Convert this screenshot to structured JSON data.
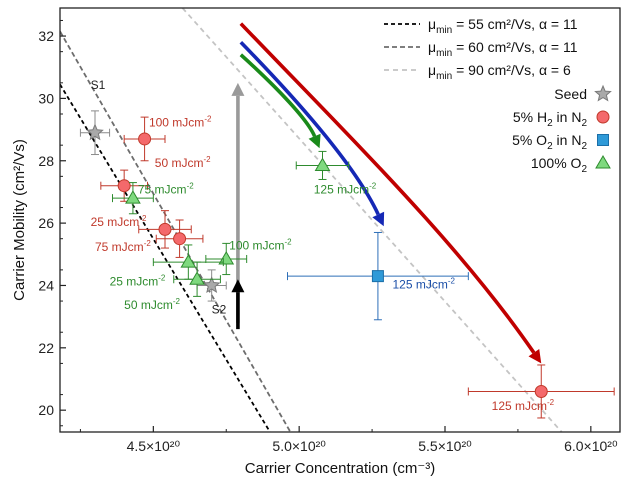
{
  "chart_data": {
    "type": "scatter",
    "xlabel": "Carrier Concentration (cm⁻³)",
    "ylabel": "Carrier Mobility (cm²/Vs)",
    "xlim": [
      4.18,
      6.1
    ],
    "ylim": [
      19.3,
      32.9
    ],
    "xticks": [
      4.5,
      5.0,
      5.5,
      6.0
    ],
    "xtick_labels": [
      "4.5×10²⁰",
      "5.0×10²⁰",
      "5.5×10²⁰",
      "6.0×10²⁰"
    ],
    "yticks": [
      20,
      22,
      24,
      26,
      28,
      30,
      32
    ],
    "ytick_labels": [
      "20",
      "22",
      "24",
      "26",
      "28",
      "30",
      "32"
    ],
    "x_multiplier": "×10²⁰",
    "grid": false,
    "legend_position": "top-right",
    "lines": [
      {
        "name": "μmin = 55 cm²/Vs, α = 11",
        "label_mu": "μ",
        "label_sub": "min",
        "label_rest": " = 55 cm²/Vs, α = 11",
        "color": "#000000",
        "x": [
          4.18,
          4.9
        ],
        "y": [
          30.45,
          19.3
        ]
      },
      {
        "name": "μmin = 60 cm²/Vs, α = 11",
        "label_mu": "μ",
        "label_sub": "min",
        "label_rest": " = 60 cm²/Vs, α = 11",
        "color": "#6d6d6d",
        "x": [
          4.18,
          4.97
        ],
        "y": [
          32.15,
          19.3
        ]
      },
      {
        "name": "μmin = 90 cm²/Vs, α = 6",
        "label_mu": "μ",
        "label_sub": "min",
        "label_rest": " = 90 cm²/Vs, α = 6",
        "color": "#c4c4c4",
        "x": [
          4.6,
          5.9
        ],
        "y": [
          32.9,
          19.3
        ]
      }
    ],
    "legend_series": [
      {
        "label": "Seed",
        "parts": [
          "Seed"
        ],
        "marker": "star",
        "color": "#a9a9a9"
      },
      {
        "label": "5% H2 in N2",
        "parts": [
          "5% H",
          "2",
          " in N",
          "2"
        ],
        "marker": "circle",
        "color": "#f4696b"
      },
      {
        "label": "5% O2 in N2",
        "parts": [
          "5% O",
          "2",
          " in N",
          "2"
        ],
        "marker": "square",
        "color": "#2f9ad8"
      },
      {
        "label": "100% O2",
        "parts": [
          "100% O",
          "2"
        ],
        "marker": "triangle",
        "color": "#7fd97f"
      }
    ],
    "series": [
      {
        "name": "Seed",
        "marker": "star",
        "color": "#a9a9a9",
        "edge": "#7a7a7a",
        "errcolor": "#8a8a8a",
        "points": [
          {
            "x": 4.3,
            "y": 28.9,
            "xerr": 0.05,
            "yerr": 0.7
          },
          {
            "x": 4.7,
            "y": 24.0,
            "xerr": 0.05,
            "yerr": 0.5
          }
        ]
      },
      {
        "name": "5% H2 in N2",
        "marker": "circle",
        "color": "#f4696b",
        "edge": "#c0392b",
        "errcolor": "#c0392b",
        "points": [
          {
            "x": 4.47,
            "y": 28.7,
            "xerr": 0.07,
            "yerr": 0.7
          },
          {
            "x": 4.4,
            "y": 27.2,
            "xerr": 0.08,
            "yerr": 0.5
          },
          {
            "x": 4.54,
            "y": 25.8,
            "xerr": 0.09,
            "yerr": 0.6
          },
          {
            "x": 4.59,
            "y": 25.5,
            "xerr": 0.08,
            "yerr": 0.6
          },
          {
            "x": 5.83,
            "y": 20.6,
            "xerr": 0.25,
            "yerr": 0.85
          }
        ]
      },
      {
        "name": "5% O2 in N2",
        "marker": "square",
        "color": "#2f9ad8",
        "edge": "#1b6fa8",
        "errcolor": "#2e6fb8",
        "points": [
          {
            "x": 5.27,
            "y": 24.3,
            "xerr": 0.31,
            "yerr": 1.4
          }
        ]
      },
      {
        "name": "100% O2",
        "marker": "triangle",
        "color": "#7fd97f",
        "edge": "#2e8b2e",
        "errcolor": "#2e8b2e",
        "points": [
          {
            "x": 4.43,
            "y": 26.8,
            "xerr": 0.07,
            "yerr": 0.5
          },
          {
            "x": 5.08,
            "y": 27.85,
            "xerr": 0.09,
            "yerr": 0.45
          },
          {
            "x": 4.75,
            "y": 24.85,
            "xerr": 0.07,
            "yerr": 0.5
          },
          {
            "x": 4.62,
            "y": 24.75,
            "xerr": 0.12,
            "yerr": 0.55
          },
          {
            "x": 4.65,
            "y": 24.2,
            "xerr": 0.08,
            "yerr": 0.55
          }
        ]
      }
    ],
    "arrows": [
      {
        "color": "#9a9a9a",
        "x": [
          4.79,
          4.79
        ],
        "y": [
          22.8,
          30.5
        ]
      },
      {
        "color": "#000000",
        "x": [
          4.79,
          4.79
        ],
        "y": [
          22.6,
          24.2
        ]
      },
      {
        "color": "#c00000",
        "x": [
          4.8,
          5.2,
          5.55,
          5.83
        ],
        "y": [
          32.4,
          28.5,
          25.3,
          21.5
        ]
      },
      {
        "color": "#1528b5",
        "x": [
          4.8,
          5.03,
          5.2,
          5.29
        ],
        "y": [
          31.8,
          29.6,
          27.7,
          25.9
        ]
      },
      {
        "color": "#1a8a1a",
        "x": [
          4.8,
          4.93,
          5.03,
          5.07
        ],
        "y": [
          31.4,
          30.3,
          29.3,
          28.4
        ]
      }
    ],
    "annotations": [
      {
        "text": "S1",
        "x": 4.285,
        "y": 30.3,
        "color": "#222222"
      },
      {
        "text": "S2",
        "x": 4.7,
        "y": 23.1,
        "color": "#222222"
      },
      {
        "text": "100 mJcm-2",
        "main": "100 mJcm",
        "sup": "-2",
        "x": 4.485,
        "y": 29.1,
        "color": "#c0392b"
      },
      {
        "text": "50 mJcm-2",
        "main": "50 mJcm",
        "sup": "-2",
        "x": 4.505,
        "y": 27.8,
        "color": "#c0392b"
      },
      {
        "text": "75 mJcm-2",
        "main": "75 mJcm",
        "sup": "-2",
        "x": 4.447,
        "y": 26.95,
        "color": "#2e8b2e"
      },
      {
        "text": "25 mJcm-2",
        "main": "25 mJcm",
        "sup": "-2",
        "x": 4.285,
        "y": 25.9,
        "color": "#c0392b"
      },
      {
        "text": "75 mJcm-2",
        "main": "75 mJcm",
        "sup": "-2",
        "x": 4.3,
        "y": 25.1,
        "color": "#c0392b"
      },
      {
        "text": "100 mJcm-2",
        "main": "100 mJcm",
        "sup": "-2",
        "x": 4.76,
        "y": 25.15,
        "color": "#2e8b2e"
      },
      {
        "text": "25 mJcm-2",
        "main": "25 mJcm",
        "sup": "-2",
        "x": 4.35,
        "y": 24.0,
        "color": "#2e8b2e"
      },
      {
        "text": "50 mJcm-2",
        "main": "50 mJcm",
        "sup": "-2",
        "x": 4.4,
        "y": 23.25,
        "color": "#2e8b2e"
      },
      {
        "text": "125 mJcm-2",
        "main": "125 mJcm",
        "sup": "-2",
        "x": 5.05,
        "y": 26.95,
        "color": "#2e8b2e"
      },
      {
        "text": "125 mJcm-2",
        "main": "125 mJcm",
        "sup": "-2",
        "x": 5.32,
        "y": 23.9,
        "color": "#1b4fa8"
      },
      {
        "text": "125 mJcm-2",
        "main": "125 mJcm",
        "sup": "-2",
        "x": 5.66,
        "y": 20.0,
        "color": "#c0392b"
      }
    ]
  }
}
